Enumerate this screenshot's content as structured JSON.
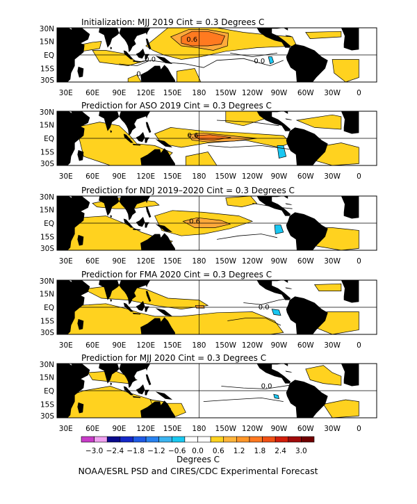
{
  "colors": {
    "land": "#000000",
    "ocean": "#ffffff",
    "pos1": "#ffd21f",
    "pos2": "#ffa93a",
    "pos3": "#ff7a20",
    "neg1": "#19c7f2",
    "line": "#000000"
  },
  "lat_labels": [
    "30N",
    "15N",
    "EQ",
    "15S",
    "30S"
  ],
  "lon_labels": [
    "30E",
    "60E",
    "90E",
    "120E",
    "150E",
    "180",
    "150W",
    "120W",
    "90W",
    "60W",
    "30W",
    "0"
  ],
  "panels": [
    {
      "title": "Initialization: MJJ 2019   Cint = 0.3 Degrees C",
      "contour_labels": [
        {
          "text": "0.6"
        },
        {
          "text": "0.0"
        },
        {
          "text": "0.0"
        },
        {
          "text": "0"
        }
      ]
    },
    {
      "title": "Prediction for ASO 2019   Cint = 0.3 Degrees C",
      "contour_labels": [
        {
          "text": "0.6"
        }
      ]
    },
    {
      "title": "Prediction for NDJ 2019–2020   Cint = 0.3 Degrees C",
      "contour_labels": [
        {
          "text": "0.6"
        }
      ]
    },
    {
      "title": "Prediction for FMA 2020   Cint = 0.3 Degrees C",
      "contour_labels": [
        {
          "text": "0.0"
        }
      ]
    },
    {
      "title": "Prediction for MJJ 2020   Cint = 0.3 Degrees C",
      "contour_labels": [
        {
          "text": "0.0"
        }
      ]
    }
  ],
  "colorbar": {
    "colors": [
      "#c83cc8",
      "#f0a0f0",
      "#0a0a8c",
      "#1428c8",
      "#1e5ae6",
      "#2882f0",
      "#3cb4f0",
      "#19c8f0",
      "#ffffff",
      "#ffffff",
      "#ffd21f",
      "#ffb43a",
      "#ff9628",
      "#ff7820",
      "#f05014",
      "#d21e0a",
      "#a00a0a",
      "#700000"
    ],
    "tick_labels": [
      "−3.0",
      "−2.4",
      "−1.8",
      "−1.2",
      "−0.6",
      "0.0",
      "0.6",
      "1.2",
      "1.8",
      "2.4",
      "3.0"
    ],
    "unit_label": "Degrees C"
  },
  "credit": "NOAA/ESRL PSD and CIRES/CDC Experimental Forecast"
}
